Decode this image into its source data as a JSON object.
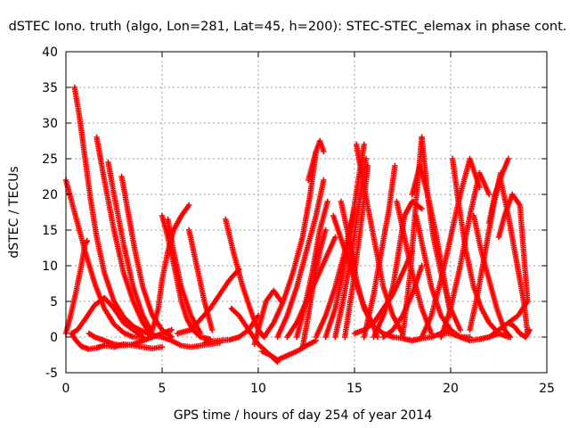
{
  "chart_data": {
    "type": "scatter",
    "title": "dSTEC Iono. truth (algo, Lon=281, Lat=45, h=200): STEC-STEC_elemax in phase cont.",
    "xlabel": "GPS time / hours of day 254 of year 2014",
    "ylabel": "dSTEC  / TECUs",
    "xlim": [
      0,
      25
    ],
    "ylim": [
      -5,
      40
    ],
    "xticks": [
      0,
      5,
      10,
      15,
      20,
      25
    ],
    "yticks": [
      -5,
      0,
      5,
      10,
      15,
      20,
      25,
      30,
      35,
      40
    ],
    "xtick_labels": [
      "0",
      "5",
      "10",
      "15",
      "20",
      "25"
    ],
    "ytick_labels": [
      "-5",
      "0",
      "5",
      "10",
      "15",
      "20",
      "25",
      "30",
      "35",
      "40"
    ],
    "grid": true,
    "marker": "plus",
    "color": "#ff0000",
    "series": [
      {
        "x": [
          0.0,
          0.5,
          1.0,
          1.5,
          2.0,
          2.5,
          3.0,
          3.5,
          4.0
        ],
        "y": [
          22,
          17,
          12,
          7.5,
          4,
          1.8,
          0.6,
          0,
          0
        ]
      },
      {
        "x": [
          0.45,
          0.7,
          1.0,
          1.3,
          1.6,
          2.0,
          2.5,
          3.0,
          3.5,
          4.0,
          4.5,
          5.0
        ],
        "y": [
          35,
          31,
          25,
          19,
          14,
          9,
          5,
          2.8,
          1.5,
          0.8,
          0.2,
          0
        ]
      },
      {
        "x": [
          1.6,
          2.0,
          2.5,
          3.0,
          3.5,
          4.0,
          4.5
        ],
        "y": [
          28,
          22,
          15,
          9,
          5,
          2,
          0
        ]
      },
      {
        "x": [
          2.2,
          2.5,
          3.0,
          3.5,
          4.0,
          4.5
        ],
        "y": [
          24.5,
          20,
          13,
          7,
          3,
          0.5
        ]
      },
      {
        "x": [
          2.9,
          3.2,
          3.6,
          4.0,
          4.5,
          5.0,
          5.5
        ],
        "y": [
          22.5,
          18,
          12,
          7,
          3,
          1,
          0
        ]
      },
      {
        "x": [
          0.0,
          0.2,
          0.5,
          0.8,
          1.0,
          1.1
        ],
        "y": [
          0.5,
          2.5,
          6,
          10,
          13,
          13.5
        ]
      },
      {
        "x": [
          0.3,
          0.5,
          0.8,
          1.2,
          1.6,
          2.0,
          2.5,
          3.0,
          3.5,
          4.0,
          4.5,
          5.0
        ],
        "y": [
          0.5,
          -0.4,
          -1.3,
          -1.7,
          -1.5,
          -1.2,
          -1.4,
          -1.0,
          -1.2,
          -1.4,
          -1.6,
          -1.4
        ]
      },
      {
        "x": [
          0.3,
          0.6,
          1.0,
          1.5,
          2.0,
          2.5,
          3.0,
          3.5,
          4.0
        ],
        "y": [
          0.5,
          1,
          2.5,
          4.5,
          5.5,
          4,
          2,
          1,
          0
        ]
      },
      {
        "x": [
          1.2,
          1.5,
          2.0,
          2.5,
          3.0,
          3.5,
          4.0,
          4.5,
          5.0,
          5.5
        ],
        "y": [
          0.5,
          0,
          -0.5,
          -1,
          -1.2,
          -1,
          -0.5,
          0,
          0.5,
          1
        ]
      },
      {
        "x": [
          5.0,
          5.3,
          5.7,
          6.0,
          6.3,
          6.6,
          7.0,
          7.5
        ],
        "y": [
          17,
          14,
          9,
          5,
          2.5,
          1,
          0,
          -0.3
        ]
      },
      {
        "x": [
          5.3,
          5.6,
          6.0,
          6.5,
          7.0
        ],
        "y": [
          16.5,
          12,
          7,
          3,
          0.5
        ]
      },
      {
        "x": [
          6.4,
          6.8,
          7.2,
          7.6
        ],
        "y": [
          15,
          10,
          5,
          1
        ]
      },
      {
        "x": [
          4.5,
          4.8,
          5.0,
          5.3,
          5.6,
          6.0,
          6.4
        ],
        "y": [
          1,
          4,
          8,
          12,
          15,
          17,
          18.5
        ]
      },
      {
        "x": [
          5.0,
          5.5,
          6.0,
          6.5,
          7.0,
          7.5,
          8.0
        ],
        "y": [
          0,
          -0.5,
          -1.2,
          -1.4,
          -1.2,
          -1,
          -0.8
        ]
      },
      {
        "x": [
          5.8,
          6.5,
          7.0,
          7.5,
          8.0,
          8.5,
          9.0
        ],
        "y": [
          0.5,
          1,
          2.5,
          4,
          6,
          8,
          9.5
        ]
      },
      {
        "x": [
          8.3,
          8.7,
          9.2,
          9.7,
          10.0,
          10.3
        ],
        "y": [
          16.5,
          12,
          7,
          3,
          1,
          0
        ]
      },
      {
        "x": [
          7.2,
          7.5,
          8.0,
          8.5,
          9.0,
          9.5,
          10.0
        ],
        "y": [
          -0.8,
          -0.6,
          -0.5,
          -0.4,
          0,
          1,
          3
        ]
      },
      {
        "x": [
          8.6,
          9.0,
          9.5,
          10.0,
          10.4,
          10.8,
          11.0
        ],
        "y": [
          4,
          3,
          1,
          -1,
          -2,
          -3,
          -3.5
        ]
      },
      {
        "x": [
          9.8,
          10.1,
          10.4,
          10.8,
          11.2
        ],
        "y": [
          -1,
          2,
          5,
          6.5,
          5
        ]
      },
      {
        "x": [
          10.2,
          10.6,
          11.0,
          11.5,
          12.0,
          12.5,
          13.0
        ],
        "y": [
          -2,
          -2.5,
          -3.2,
          -2.6,
          -2,
          -1.2,
          -0.5
        ]
      },
      {
        "x": [
          10.3,
          10.8,
          11.3,
          11.8,
          12.3,
          12.7,
          13.0
        ],
        "y": [
          0,
          2,
          5,
          9,
          14,
          20,
          26
        ]
      },
      {
        "x": [
          11.0,
          11.5,
          12.0,
          12.5,
          13.0,
          13.4
        ],
        "y": [
          0,
          3,
          7,
          12,
          17,
          22
        ]
      },
      {
        "x": [
          11.5,
          12.0,
          12.5,
          13.0,
          13.5,
          14.0
        ],
        "y": [
          0,
          2,
          5,
          8,
          11,
          14
        ]
      },
      {
        "x": [
          12.0,
          12.4,
          12.8,
          13.2,
          13.6
        ],
        "y": [
          0,
          4,
          9,
          15,
          19
        ]
      },
      {
        "x": [
          12.3,
          12.6,
          12.9,
          13.2,
          13.5
        ],
        "y": [
          -1.5,
          3,
          8,
          12,
          15
        ]
      },
      {
        "x": [
          12.6,
          12.8,
          13.0,
          13.2,
          13.4
        ],
        "y": [
          22,
          24,
          26,
          27.5,
          26
        ]
      },
      {
        "x": [
          13.0,
          13.5,
          14.0,
          14.5,
          15.0
        ],
        "y": [
          0,
          3,
          7,
          12,
          18
        ]
      },
      {
        "x": [
          13.5,
          14.0,
          14.4,
          14.8,
          15.2,
          15.5
        ],
        "y": [
          0,
          4,
          9,
          15,
          22,
          27
        ]
      },
      {
        "x": [
          14.0,
          14.4,
          14.8,
          15.2,
          15.6
        ],
        "y": [
          0,
          5,
          11,
          18,
          25
        ]
      },
      {
        "x": [
          14.5,
          14.9,
          15.3,
          15.7
        ],
        "y": [
          0,
          7,
          15,
          24
        ]
      },
      {
        "x": [
          13.9,
          14.4,
          14.9,
          15.4,
          15.9,
          16.2
        ],
        "y": [
          17,
          13,
          9,
          5,
          2,
          0
        ]
      },
      {
        "x": [
          14.3,
          14.7,
          15.1,
          15.5,
          16.0,
          16.5,
          17.0
        ],
        "y": [
          19,
          14,
          8,
          4,
          1.5,
          0.5,
          0
        ]
      },
      {
        "x": [
          15.1,
          15.5,
          16.0,
          16.5,
          17.0,
          17.5
        ],
        "y": [
          27,
          21,
          14,
          7,
          3,
          0.5
        ]
      },
      {
        "x": [
          15.0,
          15.5,
          16.0,
          16.5,
          17.0,
          17.5,
          18.0
        ],
        "y": [
          0.5,
          1,
          2,
          4,
          6,
          9,
          12
        ]
      },
      {
        "x": [
          15.5,
          16.0,
          16.4,
          16.8,
          17.1
        ],
        "y": [
          0,
          6,
          12,
          18,
          24
        ]
      },
      {
        "x": [
          16.0,
          16.5,
          17.0,
          17.3,
          17.6,
          18.0,
          18.5
        ],
        "y": [
          0,
          3,
          7,
          12,
          17,
          19,
          18
        ]
      },
      {
        "x": [
          17.2,
          17.6,
          18.0,
          18.5,
          19.0
        ],
        "y": [
          19,
          14,
          9,
          4,
          0.5
        ]
      },
      {
        "x": [
          17.0,
          17.5,
          18.0,
          18.5,
          19.0,
          19.5,
          20.0
        ],
        "y": [
          0,
          -0.2,
          -0.5,
          -0.2,
          0,
          0.5,
          1
        ]
      },
      {
        "x": [
          16.5,
          17.0,
          17.5,
          18.0,
          18.5
        ],
        "y": [
          0,
          1,
          3,
          6,
          10
        ]
      },
      {
        "x": [
          17.5,
          17.9,
          18.2,
          18.5
        ],
        "y": [
          0,
          9,
          19,
          28
        ]
      },
      {
        "x": [
          18.5,
          18.8,
          19.1,
          19.5,
          20.0,
          20.5
        ],
        "y": [
          28,
          20,
          14,
          9,
          4,
          1
        ]
      },
      {
        "x": [
          18.0,
          18.4,
          18.8,
          19.2,
          19.6,
          20.0
        ],
        "y": [
          20,
          24,
          20,
          15,
          9,
          3
        ]
      },
      {
        "x": [
          18.2,
          18.6,
          19.0,
          19.5,
          20.0,
          20.5,
          21.0
        ],
        "y": [
          17,
          12,
          7,
          3,
          1,
          0,
          0
        ]
      },
      {
        "x": [
          18.5,
          19.0,
          19.5,
          20.0,
          20.5,
          21.0,
          21.5
        ],
        "y": [
          0,
          3,
          8,
          14,
          20,
          25,
          21
        ]
      },
      {
        "x": [
          19.5,
          20.0,
          20.5,
          21.0,
          21.5,
          22.0
        ],
        "y": [
          0,
          4,
          10,
          17,
          23,
          20
        ]
      },
      {
        "x": [
          19.5,
          20.0,
          20.5,
          21.0,
          21.5,
          22.0,
          22.5
        ],
        "y": [
          0.5,
          0.5,
          0,
          -0.5,
          -0.3,
          0,
          0.5
        ]
      },
      {
        "x": [
          20.1,
          20.4,
          20.8,
          21.2,
          21.6,
          22.0,
          22.5,
          23.0
        ],
        "y": [
          25,
          19,
          12,
          7,
          4,
          2,
          0.5,
          0
        ]
      },
      {
        "x": [
          21.2,
          21.6,
          22.0,
          22.4,
          22.8,
          23.1
        ],
        "y": [
          17,
          12,
          8,
          4,
          1,
          0
        ]
      },
      {
        "x": [
          21.0,
          21.4,
          21.8,
          22.2,
          22.6
        ],
        "y": [
          1,
          6,
          12,
          18,
          23
        ]
      },
      {
        "x": [
          22.0,
          22.3,
          22.7,
          23.0
        ],
        "y": [
          16,
          20,
          23,
          25
        ]
      },
      {
        "x": [
          22.6,
          23.0,
          23.4,
          23.8,
          24.0
        ],
        "y": [
          22,
          17,
          11,
          5,
          0.5
        ]
      },
      {
        "x": [
          22.5,
          22.8,
          23.2,
          23.6,
          24.0
        ],
        "y": [
          14,
          17,
          20,
          18.5,
          5
        ]
      },
      {
        "x": [
          22.0,
          22.5,
          23.0,
          23.5,
          24.0
        ],
        "y": [
          0,
          1,
          2,
          3,
          5
        ]
      },
      {
        "x": [
          23.0,
          23.3,
          23.6,
          23.9,
          24.1
        ],
        "y": [
          2,
          1.5,
          0.5,
          0,
          1
        ]
      }
    ]
  }
}
